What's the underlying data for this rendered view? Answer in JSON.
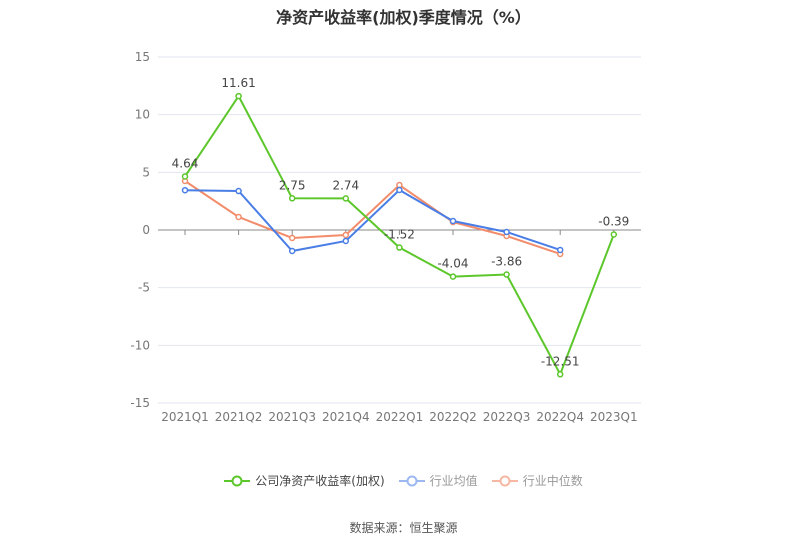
{
  "chart_data": {
    "type": "line",
    "title": "净资产收益率(加权)季度情况（%）",
    "categories": [
      "2021Q1",
      "2021Q2",
      "2021Q3",
      "2021Q4",
      "2022Q1",
      "2022Q2",
      "2022Q3",
      "2022Q4",
      "2023Q1"
    ],
    "ylim": [
      -15,
      15
    ],
    "yticks": [
      15,
      10,
      5,
      0,
      -5,
      -10,
      -15
    ],
    "grid": true,
    "legend_position": "bottom",
    "series": [
      {
        "name": "公司净资产收益率(加权)",
        "color": "#5cc72a",
        "values": [
          4.64,
          11.61,
          2.75,
          2.74,
          -1.52,
          -4.04,
          -3.86,
          -12.51,
          -0.39
        ],
        "labels": [
          "4.64",
          "11.61",
          "2.75",
          "2.74",
          "-1.52",
          "-4.04",
          "-3.86",
          "-12.51",
          "-0.39"
        ]
      },
      {
        "name": "行业均值",
        "color": "#4a7ee6",
        "values": [
          3.45,
          3.38,
          -1.82,
          -0.95,
          3.47,
          0.78,
          -0.17,
          -1.73,
          null
        ]
      },
      {
        "name": "行业中位数",
        "color": "#f28c6b",
        "values": [
          4.25,
          1.13,
          -0.69,
          -0.43,
          3.9,
          0.69,
          -0.52,
          -2.08,
          null
        ]
      }
    ]
  },
  "legend_colors": [
    "#5cc72a",
    "#9bb8f0",
    "#f6b7a3"
  ],
  "source": "数据来源：恒生聚源"
}
